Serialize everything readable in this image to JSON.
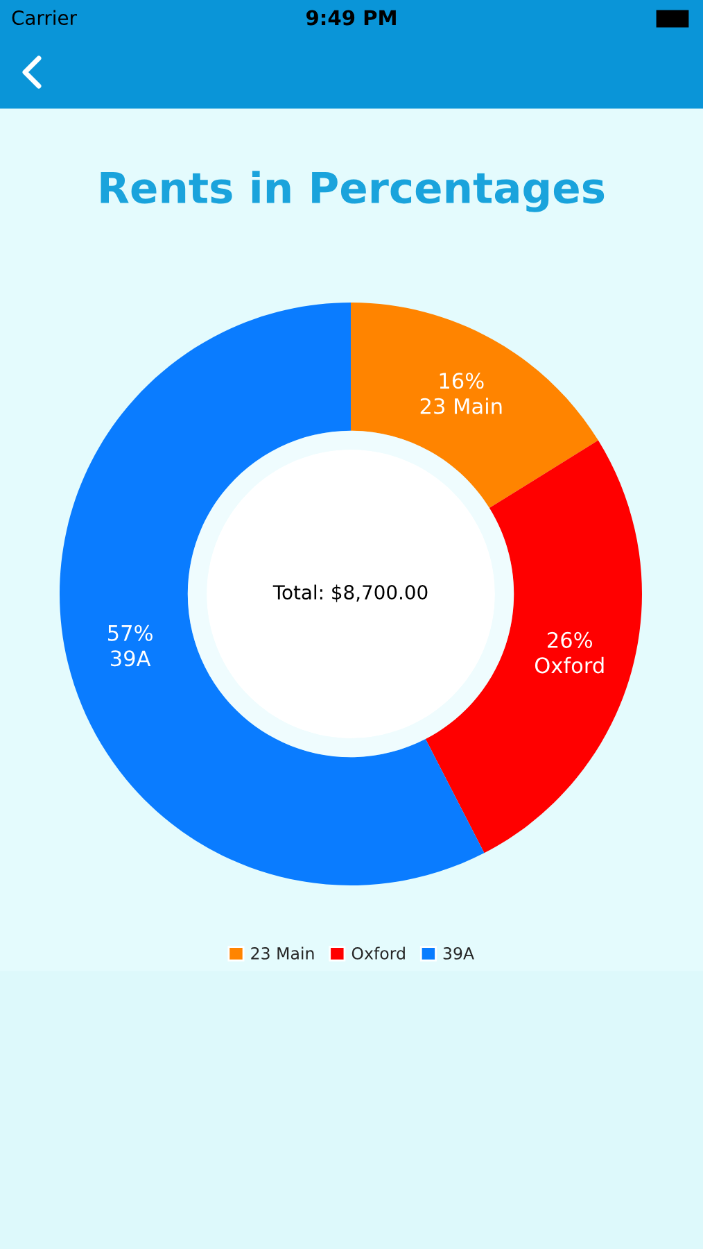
{
  "chart_data": {
    "type": "donut",
    "title": "Rents in Percentages",
    "categories": [
      "23 Main",
      "Oxford",
      "39A"
    ],
    "values": [
      16,
      26,
      57
    ],
    "colors": [
      "#ff8400",
      "#ff0000",
      "#0a7cff"
    ],
    "value_labels": [
      "16%",
      "26%",
      "57%"
    ],
    "legend": "bottom",
    "annotations": [
      "Total: $8,700.00",
      "Carrier",
      "9:49 PM"
    ]
  }
}
